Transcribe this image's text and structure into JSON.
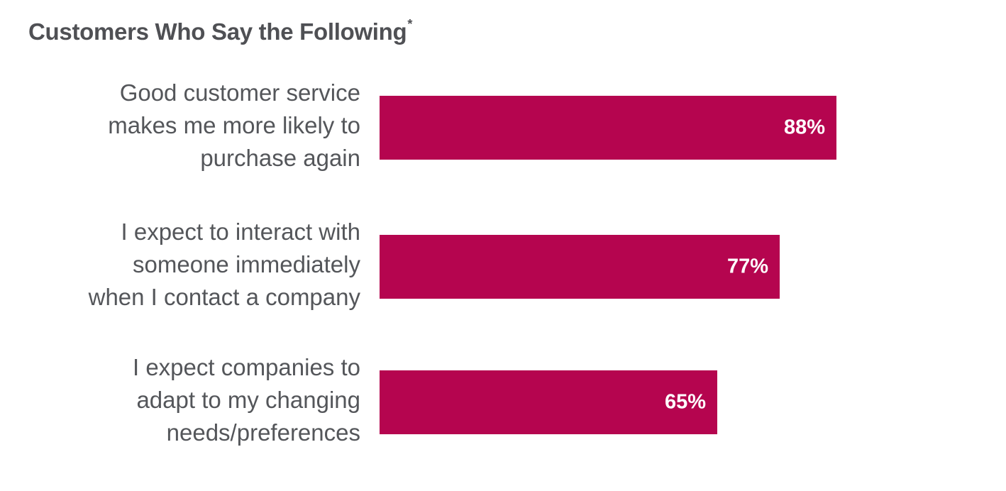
{
  "chart_data": {
    "type": "bar",
    "orientation": "horizontal",
    "title": "Customers Who Say the Following",
    "title_marker": "*",
    "categories": [
      [
        "Good customer service",
        "makes me more likely to",
        "purchase again"
      ],
      [
        "I expect to interact with",
        "someone immediately",
        "when I contact a company"
      ],
      [
        "I expect companies to",
        "adapt to my changing",
        "needs/preferences"
      ]
    ],
    "values": [
      88,
      77,
      65
    ],
    "value_labels": [
      "88%",
      "77%",
      "65%"
    ],
    "xlim": [
      0,
      100
    ],
    "grid": false,
    "legend": "none",
    "bar_color": "#b5054f",
    "value_label_color": "#ffffff"
  }
}
